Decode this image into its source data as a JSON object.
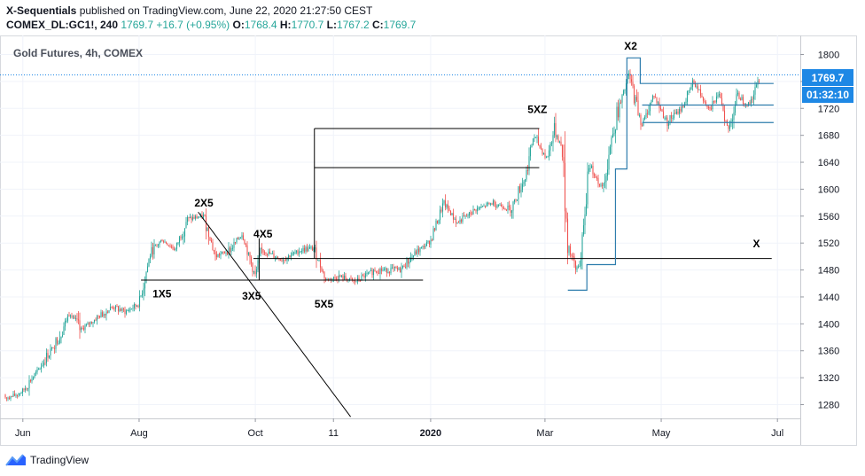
{
  "header": {
    "line1_author": "X-Sequentials",
    "line1_rest": " published on TradingView.com, June 22, 2020 21:27:50 CEST",
    "symbol": "COMEX_DL:GC1!, 240",
    "last": "1769.7",
    "change": "+16.7 (+0.95%)",
    "o_label": "O:",
    "o_val": "1768.4",
    "h_label": "H:",
    "h_val": "1770.7",
    "l_label": "L:",
    "l_val": "1767.2",
    "c_label": "C:",
    "c_val": "1769.7"
  },
  "chart_title": "Gold Futures, 4h, COMEX",
  "footer": {
    "brand": "TradingView"
  },
  "colors": {
    "up": "#26a69a",
    "down": "#ef5350",
    "price_badge": "#1e88e5",
    "trend": "#000000",
    "step": "#2e7dad"
  },
  "chart_data": {
    "type": "candlestick",
    "title": "Gold Futures, 4h, COMEX",
    "ylim": [
      1260,
      1820
    ],
    "y_ticks": [
      1280,
      1320,
      1360,
      1400,
      1440,
      1480,
      1520,
      1560,
      1600,
      1640,
      1680,
      1720,
      1760,
      1800
    ],
    "x_ticks": [
      "Jun",
      "Aug",
      "Oct",
      "11",
      "2020",
      "Mar",
      "May",
      "Jul"
    ],
    "last_price": "1769.7",
    "countdown": "01:32:10",
    "price_path": [
      [
        "2019-05-25",
        1290
      ],
      [
        "2019-06-01",
        1300
      ],
      [
        "2019-06-10",
        1335
      ],
      [
        "2019-06-20",
        1380
      ],
      [
        "2019-06-26",
        1420
      ],
      [
        "2019-07-01",
        1390
      ],
      [
        "2019-07-08",
        1405
      ],
      [
        "2019-07-18",
        1425
      ],
      [
        "2019-07-25",
        1418
      ],
      [
        "2019-08-01",
        1430
      ],
      [
        "2019-08-07",
        1505
      ],
      [
        "2019-08-13",
        1525
      ],
      [
        "2019-08-20",
        1510
      ],
      [
        "2019-08-26",
        1555
      ],
      [
        "2019-09-04",
        1560
      ],
      [
        "2019-09-10",
        1500
      ],
      [
        "2019-09-18",
        1510
      ],
      [
        "2019-09-24",
        1535
      ],
      [
        "2019-10-01",
        1470
      ],
      [
        "2019-10-04",
        1510
      ],
      [
        "2019-10-15",
        1495
      ],
      [
        "2019-10-25",
        1510
      ],
      [
        "2019-11-01",
        1512
      ],
      [
        "2019-11-07",
        1465
      ],
      [
        "2019-11-15",
        1470
      ],
      [
        "2019-11-22",
        1462
      ],
      [
        "2019-12-03",
        1480
      ],
      [
        "2019-12-16",
        1480
      ],
      [
        "2019-12-24",
        1505
      ],
      [
        "2020-01-01",
        1523
      ],
      [
        "2020-01-08",
        1580
      ],
      [
        "2020-01-15",
        1550
      ],
      [
        "2020-01-25",
        1570
      ],
      [
        "2020-02-03",
        1580
      ],
      [
        "2020-02-12",
        1570
      ],
      [
        "2020-02-20",
        1620
      ],
      [
        "2020-02-24",
        1680
      ],
      [
        "2020-03-02",
        1645
      ],
      [
        "2020-03-06",
        1690
      ],
      [
        "2020-03-10",
        1660
      ],
      [
        "2020-03-13",
        1520
      ],
      [
        "2020-03-17",
        1480
      ],
      [
        "2020-03-20",
        1495
      ],
      [
        "2020-03-24",
        1640
      ],
      [
        "2020-03-31",
        1600
      ],
      [
        "2020-04-06",
        1690
      ],
      [
        "2020-04-14",
        1770
      ],
      [
        "2020-04-21",
        1695
      ],
      [
        "2020-04-27",
        1740
      ],
      [
        "2020-05-04",
        1700
      ],
      [
        "2020-05-12",
        1720
      ],
      [
        "2020-05-18",
        1760
      ],
      [
        "2020-05-26",
        1720
      ],
      [
        "2020-06-01",
        1740
      ],
      [
        "2020-06-05",
        1685
      ],
      [
        "2020-06-10",
        1740
      ],
      [
        "2020-06-16",
        1725
      ],
      [
        "2020-06-19",
        1745
      ],
      [
        "2020-06-22",
        1769.7
      ]
    ],
    "annotations": [
      {
        "text": "1X5",
        "date": "2019-08-13",
        "price": 1439
      },
      {
        "text": "2X5",
        "date": "2019-09-04",
        "price": 1574
      },
      {
        "text": "3X5",
        "date": "2019-09-29",
        "price": 1436
      },
      {
        "text": "4X5",
        "date": "2019-10-05",
        "price": 1528
      },
      {
        "text": "5X5",
        "date": "2019-11-06",
        "price": 1424
      },
      {
        "text": "5XZ",
        "date": "2020-02-26",
        "price": 1713
      },
      {
        "text": "X2",
        "date": "2020-04-15",
        "price": 1807
      },
      {
        "text": "X",
        "date": "2020-06-20",
        "price": 1514
      }
    ],
    "segments": [
      {
        "kind": "trend",
        "from": [
          "2019-09-01",
          1566
        ],
        "to": [
          "2019-11-20",
          1262
        ]
      },
      {
        "kind": "level",
        "from": [
          "2019-08-02",
          1465
        ],
        "to": [
          "2019-12-28",
          1465
        ]
      },
      {
        "kind": "level",
        "from": [
          "2019-09-30",
          1497
        ],
        "to": [
          "2020-06-28",
          1497
        ]
      },
      {
        "kind": "level",
        "from": [
          "2019-11-01",
          1690
        ],
        "to": [
          "2020-02-27",
          1690
        ]
      },
      {
        "kind": "level",
        "from": [
          "2019-11-01",
          1632
        ],
        "to": [
          "2020-02-27",
          1632
        ]
      },
      {
        "kind": "level",
        "from": [
          "2019-11-01",
          1497
        ],
        "to": [
          "2019-11-01",
          1690
        ]
      },
      {
        "kind": "level",
        "from": [
          "2019-10-03",
          1465
        ],
        "to": [
          "2019-10-03",
          1527
        ]
      }
    ],
    "step_line": [
      [
        "2020-03-13",
        1450
      ],
      [
        "2020-03-23",
        1450
      ],
      [
        "2020-03-23",
        1488
      ],
      [
        "2020-04-07",
        1488
      ],
      [
        "2020-04-07",
        1630
      ],
      [
        "2020-04-13",
        1630
      ],
      [
        "2020-04-13",
        1795
      ],
      [
        "2020-04-20",
        1795
      ],
      [
        "2020-04-20",
        1757
      ],
      [
        "2020-06-29",
        1757
      ]
    ],
    "boxes": [
      {
        "from": "2020-04-21",
        "to": "2020-06-29",
        "top": 1725,
        "bottom": 1699
      }
    ]
  }
}
